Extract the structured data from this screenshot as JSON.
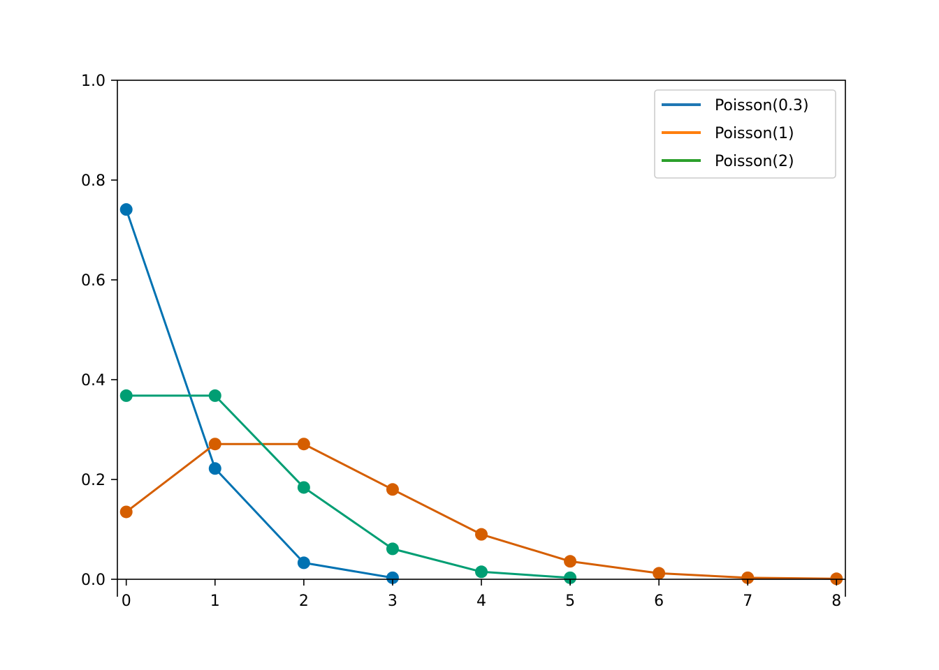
{
  "chart_data": {
    "type": "line",
    "title": "",
    "xlabel": "",
    "ylabel": "",
    "xlim": [
      -0.1,
      8.1
    ],
    "ylim": [
      0.0,
      1.0
    ],
    "x_ticks": [
      "0",
      "1",
      "2",
      "3",
      "4",
      "5",
      "6",
      "7",
      "8"
    ],
    "y_ticks": [
      "0.0",
      "0.2",
      "0.4",
      "0.6",
      "0.8",
      "1.0"
    ],
    "grid": false,
    "legend": {
      "placement": "top-right",
      "entries": [
        {
          "label": "Poisson(0.3)",
          "color": "#1f77b4"
        },
        {
          "label": "Poisson(1)",
          "color": "#ff7f0e"
        },
        {
          "label": "Poisson(2)",
          "color": "#2ca02c"
        }
      ]
    },
    "series": [
      {
        "color": "#0072b2",
        "x": [
          0,
          1,
          2,
          3
        ],
        "y": [
          0.741,
          0.222,
          0.033,
          0.003
        ]
      },
      {
        "color": "#d55e00",
        "x": [
          0,
          1,
          2,
          3,
          4,
          5,
          6,
          7,
          8
        ],
        "y": [
          0.135,
          0.271,
          0.271,
          0.18,
          0.09,
          0.036,
          0.012,
          0.003,
          0.001
        ]
      },
      {
        "color": "#009e73",
        "x": [
          0,
          1,
          2,
          3,
          4,
          5
        ],
        "y": [
          0.368,
          0.368,
          0.184,
          0.061,
          0.015,
          0.003
        ]
      }
    ]
  }
}
